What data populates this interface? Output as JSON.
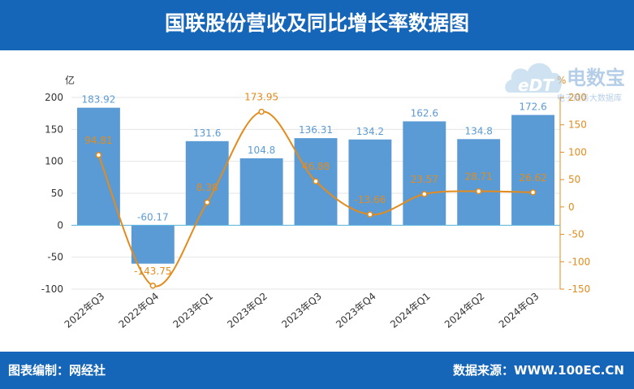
{
  "header": {
    "title": "国联股份营收及同比增长率数据图"
  },
  "footer": {
    "left": "图表编制：网经社",
    "right": "数据来源：WWW.100EC.CN"
  },
  "watermark": {
    "logo": "eDT",
    "cn": "电数宝",
    "sub": "电子商务大数据库"
  },
  "chart_data": {
    "type": "bar",
    "categories": [
      "2022年Q3",
      "2022年Q4",
      "2023年Q1",
      "2023年Q2",
      "2023年Q3",
      "2023年Q4",
      "2024年Q1",
      "2024年Q2",
      "2024年Q3"
    ],
    "series": [
      {
        "axis": "left",
        "type": "bar",
        "values": [
          183.92,
          -60.17,
          131.6,
          104.8,
          136.31,
          134.2,
          162.6,
          134.8,
          172.6
        ],
        "labels": [
          "183.92",
          "-60.17",
          "131.6",
          "104.8",
          "136.31",
          "134.2",
          "162.6",
          "134.8",
          "172.6"
        ],
        "color": "#5b9bd5"
      },
      {
        "axis": "right",
        "type": "line",
        "values": [
          94.81,
          -143.75,
          8.38,
          173.95,
          46.88,
          -13.66,
          23.57,
          28.71,
          26.62
        ],
        "labels": [
          "94.81",
          "-143.75",
          "8.38",
          "173.95",
          "46.88",
          "-13.66",
          "23.57",
          "28.71",
          "26.62"
        ],
        "color": "#e38b1c"
      }
    ],
    "y_left": {
      "label": "亿",
      "ticks": [
        "200",
        "150",
        "100",
        "50",
        "0",
        "-50",
        "-100"
      ],
      "range": [
        -100,
        200
      ]
    },
    "y_right": {
      "label": "%",
      "ticks": [
        "200",
        "150",
        "100",
        "50",
        "0",
        "-50",
        "-100",
        "-150"
      ],
      "range": [
        -150,
        200
      ]
    },
    "grid": true
  }
}
